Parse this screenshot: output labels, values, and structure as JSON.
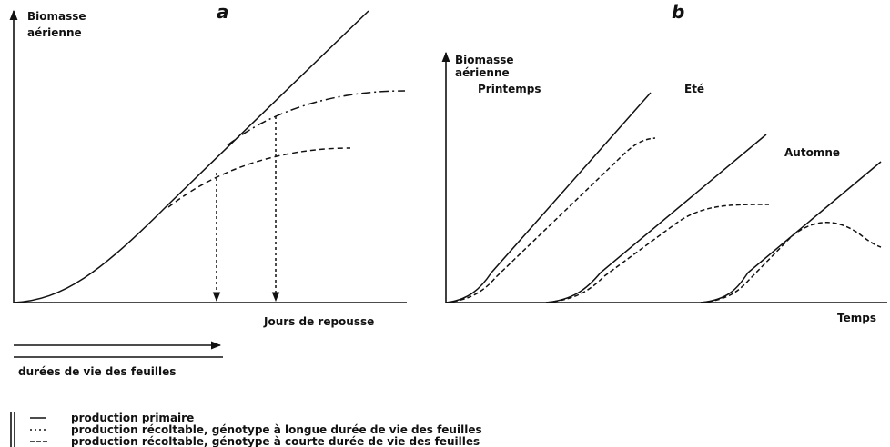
{
  "panel_a": {
    "label": "a",
    "y_label_lines": [
      "Biomasse",
      "aérienne"
    ],
    "x_label": "Jours de repousse"
  },
  "panel_b": {
    "label": "b",
    "y_label_lines": [
      "Biomasse",
      "aérienne"
    ],
    "x_label": "Temps",
    "seasons": [
      "Printemps",
      "Eté",
      "Automne"
    ]
  },
  "arrow_caption": "durées de vie des feuilles",
  "legend": [
    "production primaire",
    "production récoltable, génotype à longue durée de vie des feuilles",
    "production récoltable, génotype à courte durée de vie des feuilles"
  ]
}
